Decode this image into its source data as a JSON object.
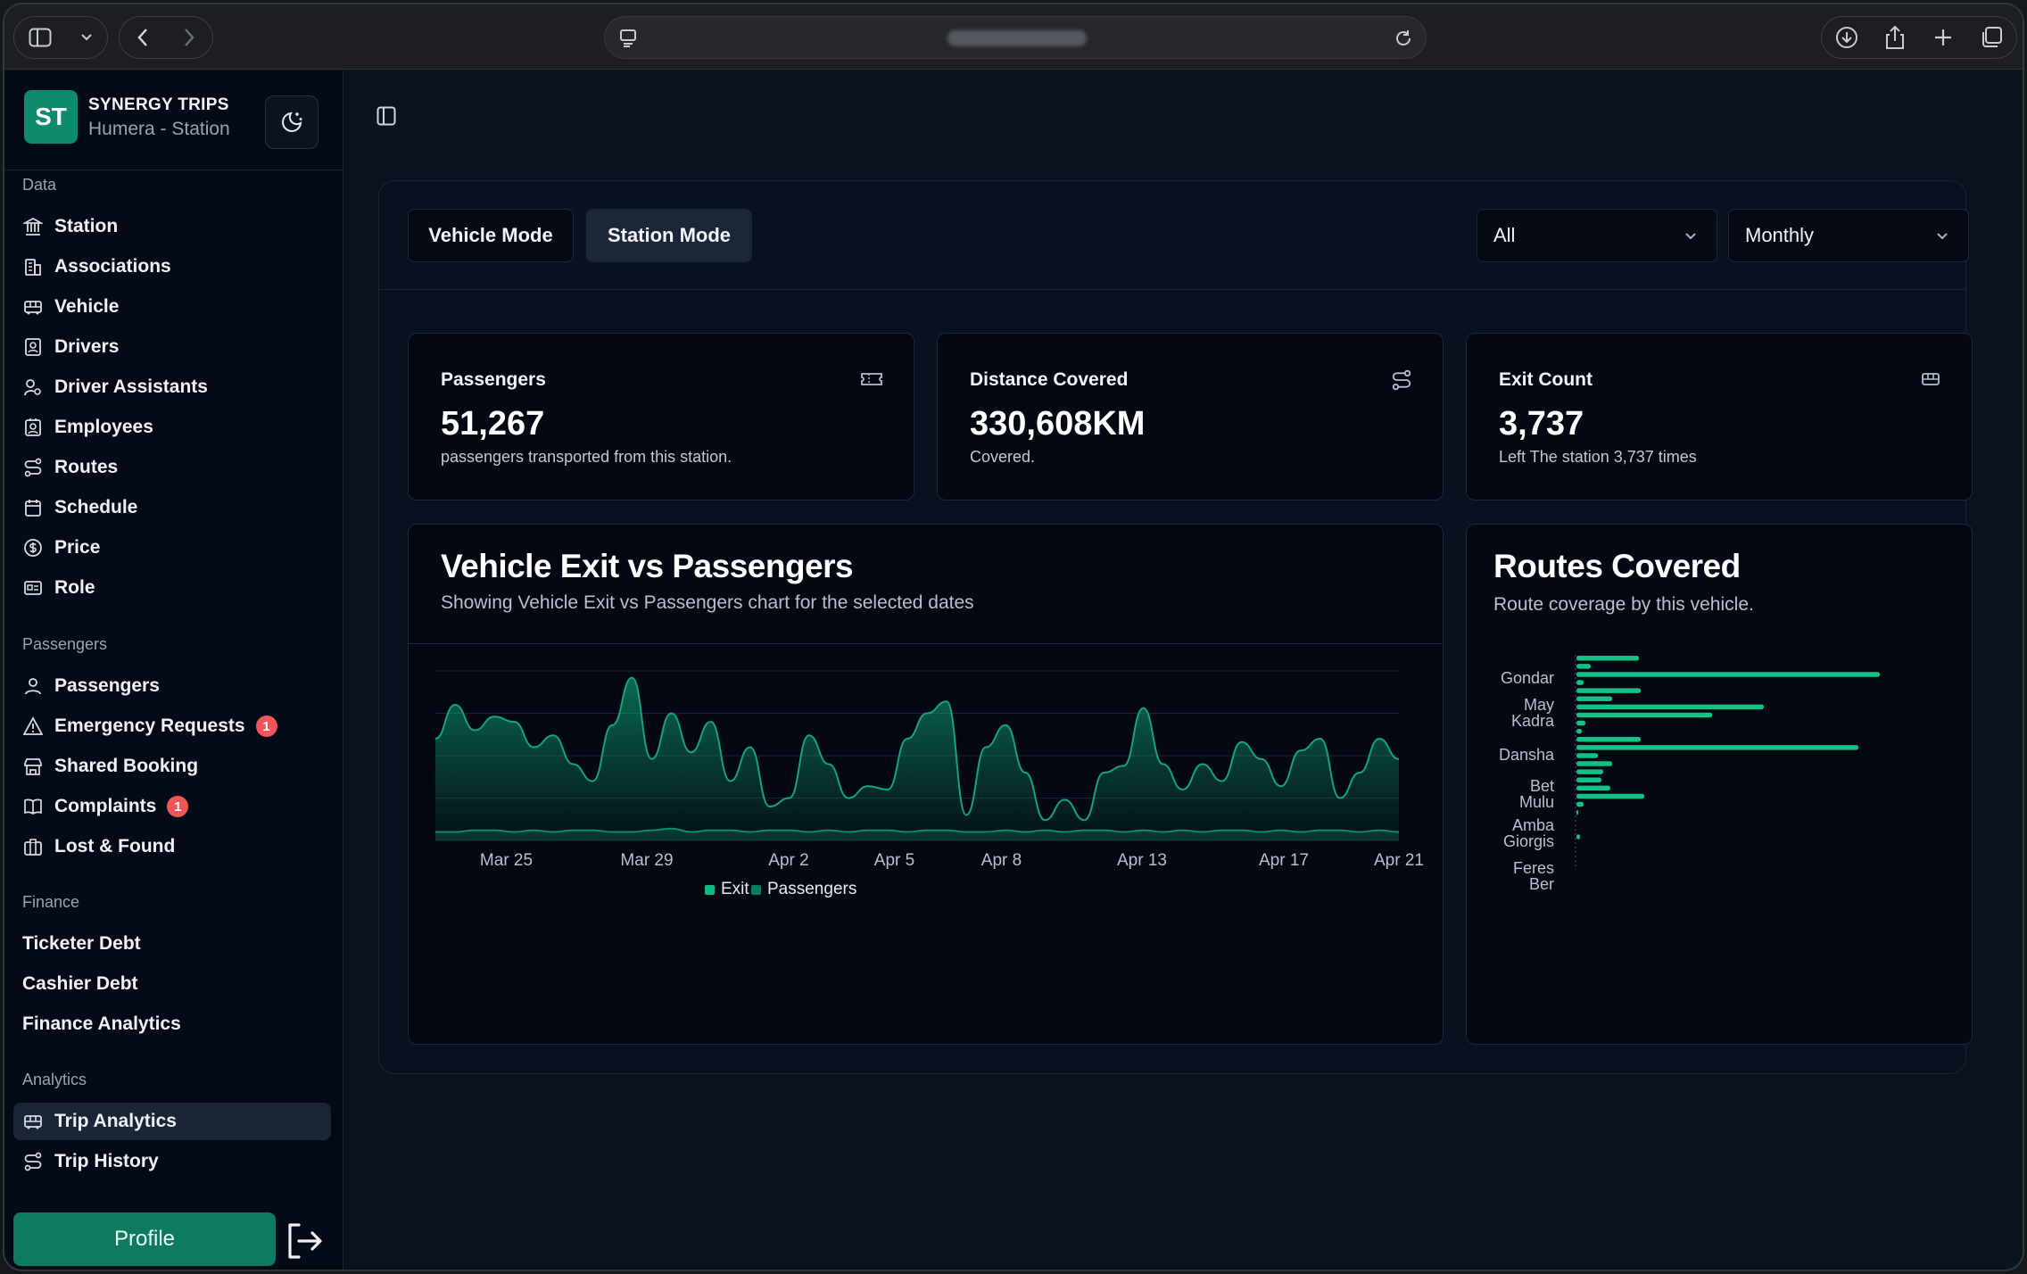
{
  "brand": {
    "initials": "ST",
    "name": "SYNERGY TRIPS",
    "subtitle": "Humera - Station"
  },
  "sidebar": {
    "groups": [
      {
        "label": "Data",
        "items": [
          {
            "label": "Station",
            "icon": "building-columns-icon"
          },
          {
            "label": "Associations",
            "icon": "buildings-icon"
          },
          {
            "label": "Vehicle",
            "icon": "bus-icon"
          },
          {
            "label": "Drivers",
            "icon": "id-badge-icon"
          },
          {
            "label": "Driver Assistants",
            "icon": "user-cog-icon"
          },
          {
            "label": "Employees",
            "icon": "contact-icon"
          },
          {
            "label": "Routes",
            "icon": "route-icon"
          },
          {
            "label": "Schedule",
            "icon": "calendar-icon"
          },
          {
            "label": "Price",
            "icon": "dollar-circle-icon"
          },
          {
            "label": "Role",
            "icon": "id-card-icon"
          }
        ]
      },
      {
        "label": "Passengers",
        "items": [
          {
            "label": "Passengers",
            "icon": "user-icon"
          },
          {
            "label": "Emergency Requests",
            "icon": "warning-icon",
            "badge": "1"
          },
          {
            "label": "Shared Booking",
            "icon": "store-icon"
          },
          {
            "label": "Complaints",
            "icon": "book-open-icon",
            "badge": "1"
          },
          {
            "label": "Lost & Found",
            "icon": "briefcase-icon"
          }
        ]
      },
      {
        "label": "Finance",
        "items": [
          {
            "label": "Ticketer Debt"
          },
          {
            "label": "Cashier Debt"
          },
          {
            "label": "Finance Analytics"
          }
        ]
      },
      {
        "label": "Analytics",
        "items": [
          {
            "label": "Trip Analytics",
            "icon": "bus-icon",
            "active": true
          },
          {
            "label": "Trip History",
            "icon": "route-icon"
          }
        ]
      }
    ],
    "profile_label": "Profile"
  },
  "toolbar": {
    "modes": [
      "Vehicle Mode",
      "Station Mode"
    ],
    "active_mode": "Station Mode",
    "filter_value": "All",
    "period_value": "Monthly"
  },
  "stats": [
    {
      "title": "Passengers",
      "value": "51,267",
      "sub": "passengers transported from this station.",
      "icon": "ticket-icon"
    },
    {
      "title": "Distance Covered",
      "value": "330,608KM",
      "sub": "Covered.",
      "icon": "route-icon"
    },
    {
      "title": "Exit Count",
      "value": "3,737",
      "sub": "Left The station 3,737 times",
      "icon": "bus-icon"
    }
  ],
  "exit_chart": {
    "title": "Vehicle Exit vs Passengers",
    "subtitle": "Showing Vehicle Exit vs Passengers chart for the selected dates",
    "legend": [
      "Exit",
      "Passengers"
    ]
  },
  "routes_chart": {
    "title": "Routes Covered",
    "subtitle": "Route coverage by this vehicle."
  },
  "colors": {
    "accent": "#0e8a6c",
    "exit": "#10b981",
    "passengers": "#0f7a62",
    "bar": "#10c286"
  },
  "chart_data": [
    {
      "type": "area",
      "x_ticks": [
        "Mar 25",
        "Mar 29",
        "Apr 2",
        "Apr 5",
        "Apr 8",
        "Apr 13",
        "Apr 17",
        "Apr 21"
      ],
      "series": [
        {
          "name": "Exit",
          "values": [
            60,
            80,
            65,
            73,
            70,
            55,
            62,
            45,
            35,
            68,
            96,
            48,
            75,
            52,
            70,
            35,
            55,
            20,
            25,
            62,
            45,
            25,
            32,
            30,
            60,
            75,
            82,
            15,
            55,
            68,
            40,
            12,
            24,
            12,
            40,
            44,
            78,
            45,
            30,
            45,
            35,
            58,
            48,
            32,
            53,
            60,
            25,
            40,
            60,
            48
          ]
        },
        {
          "name": "Passengers",
          "values": [
            5,
            5,
            6,
            6,
            5,
            6,
            5,
            6,
            6,
            5,
            5,
            6,
            7,
            5,
            6,
            6,
            5,
            6,
            6,
            5,
            6,
            5,
            6,
            6,
            5,
            6,
            6,
            5,
            5,
            6,
            5,
            6,
            5,
            6,
            6,
            5,
            6,
            5,
            6,
            5,
            6,
            6,
            5,
            6,
            5,
            6,
            6,
            5,
            6,
            5
          ]
        }
      ]
    },
    {
      "type": "bar",
      "orientation": "horizontal",
      "category_labels": [
        "Gondar",
        "May Kadra",
        "Dansha",
        "Bet Mulu",
        "Amba Giorgis",
        "Feres Ber"
      ],
      "values": [
        35,
        8,
        170,
        4,
        36,
        20,
        105,
        76,
        5,
        3,
        36,
        158,
        12,
        20,
        15,
        14,
        19,
        38,
        4,
        1,
        0,
        0,
        2,
        0,
        0,
        0
      ]
    }
  ]
}
